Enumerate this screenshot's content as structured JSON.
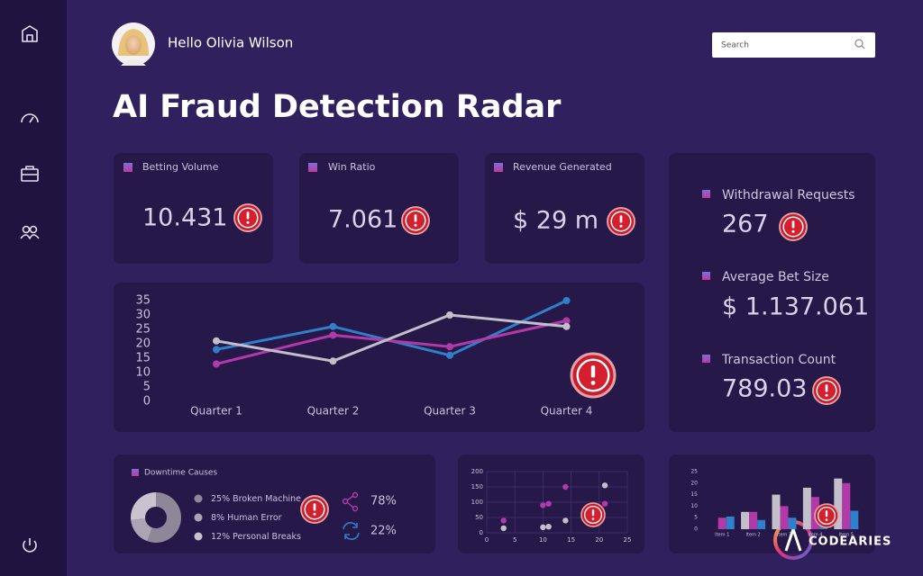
{
  "header": {
    "greeting": "Hello Olivia Wilson",
    "search_placeholder": "Search",
    "title": "AI Fraud Detection Radar"
  },
  "kpis": [
    {
      "label": "Betting Volume",
      "value": "10.431"
    },
    {
      "label": "Win Ratio",
      "value": "7.061"
    },
    {
      "label": "Revenue Generated",
      "value": "$ 29 m"
    }
  ],
  "side_stats": [
    {
      "label": "Withdrawal Requests",
      "value": "267"
    },
    {
      "label": "Average Bet Size",
      "value": "$ 1.137.061"
    },
    {
      "label": "Transaction Count",
      "value": "789.03"
    }
  ],
  "downtime_stats": [
    "78%",
    "22%"
  ],
  "brand": "CODEARIES",
  "chart_data": [
    {
      "type": "line",
      "categories": [
        "Quarter 1",
        "Quarter 2",
        "Quarter 3",
        "Quarter 4"
      ],
      "series": [
        {
          "color": "#2f7fc9",
          "values": [
            18,
            26,
            16,
            35
          ]
        },
        {
          "color": "#b03aa8",
          "values": [
            13,
            23,
            19,
            28
          ]
        },
        {
          "color": "#c3bfca",
          "values": [
            21,
            14,
            30,
            26
          ]
        }
      ],
      "ylim": [
        0,
        35
      ],
      "yticks": [
        0,
        5,
        10,
        15,
        20,
        25,
        30,
        35
      ],
      "grid": false
    },
    {
      "type": "pie",
      "title": "Downtime Causes",
      "categories": [
        "Broken Machine",
        "Human Error",
        "Personal Breaks"
      ],
      "values": [
        25,
        8,
        12
      ],
      "value_labels": [
        "25%",
        "8%",
        "12%"
      ],
      "colors": [
        "#8d8799",
        "#aaa4b4",
        "#c8c3ce"
      ],
      "donut": true
    },
    {
      "type": "scatter",
      "series": [
        {
          "color": "#b03aa8",
          "x": [
            3,
            10,
            11,
            14,
            21
          ],
          "values": [
            40,
            90,
            95,
            150,
            95
          ]
        },
        {
          "color": "#c3bfca",
          "x": [
            3,
            10,
            11,
            14,
            21
          ],
          "values": [
            15,
            18,
            20,
            40,
            155
          ]
        }
      ],
      "xlim": [
        0,
        25
      ],
      "xticks": [
        0,
        5,
        10,
        15,
        20,
        25
      ],
      "ylim": [
        0,
        200
      ],
      "yticks": [
        0,
        50,
        100,
        150,
        200
      ],
      "grid": true
    },
    {
      "type": "bar",
      "categories": [
        "Item 1",
        "Item 2",
        "Item 3",
        "Item 4",
        "Item 5"
      ],
      "series": [
        {
          "color": "#c3bfca",
          "values": [
            0,
            7.5,
            15,
            18,
            22
          ]
        },
        {
          "color": "#b03aa8",
          "values": [
            5,
            7.5,
            10,
            14,
            20
          ]
        },
        {
          "color": "#2f7fc9",
          "values": [
            5.5,
            4,
            5,
            5,
            8
          ]
        }
      ],
      "ylim": [
        0,
        25
      ],
      "yticks": [
        0,
        5,
        10,
        15,
        20,
        25
      ],
      "grid": false
    }
  ]
}
